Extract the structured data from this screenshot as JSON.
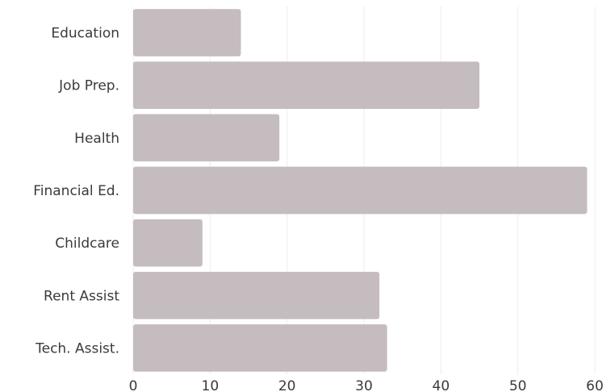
{
  "chart_data": {
    "type": "bar",
    "orientation": "horizontal",
    "categories": [
      "Education",
      "Job Prep.",
      "Health",
      "Financial Ed.",
      "Childcare",
      "Rent Assist",
      "Tech. Assist."
    ],
    "values": [
      14,
      45,
      19,
      59,
      9,
      32,
      33
    ],
    "xlim": [
      0,
      60
    ],
    "xticks": [
      0,
      10,
      20,
      30,
      40,
      50,
      60
    ],
    "title": "",
    "xlabel": "",
    "ylabel": "",
    "grid": true,
    "bar_color": "#c4bcbf"
  }
}
